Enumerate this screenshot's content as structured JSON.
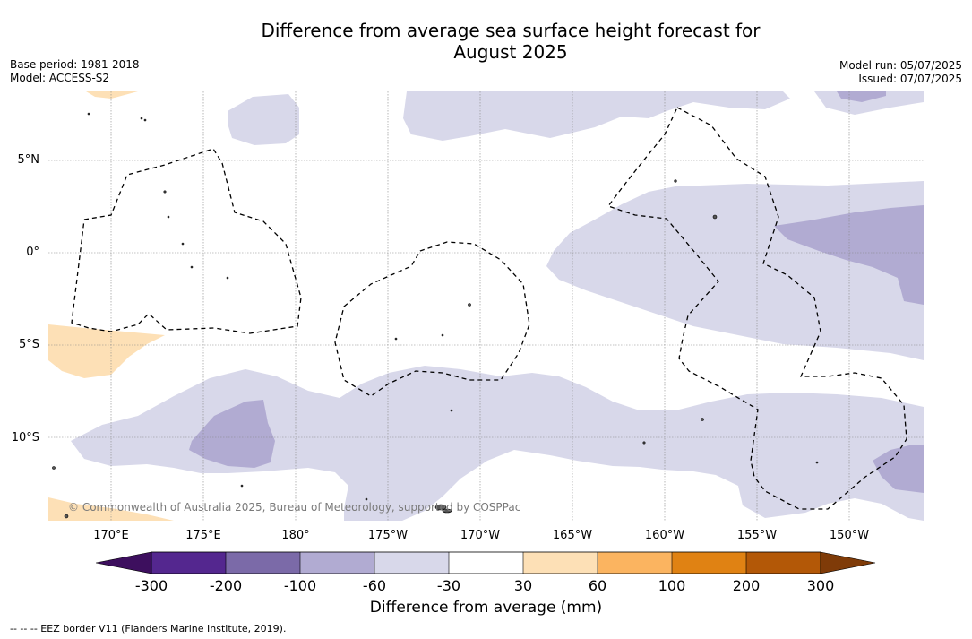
{
  "header": {
    "title_line1": "Difference from average sea surface height forecast for",
    "title_line2": "August 2025",
    "base_period": "Base period: 1981-2018",
    "model": "Model: ACCESS-S2",
    "model_run": "Model run: 05/07/2025",
    "issued": "Issued: 07/07/2025"
  },
  "map": {
    "lat_labels": [
      "5°N",
      "0°",
      "5°S",
      "10°S"
    ],
    "lon_labels": [
      "170°E",
      "175°E",
      "180°",
      "175°W",
      "170°W",
      "165°W",
      "160°W",
      "155°W",
      "150°W"
    ],
    "copyright": "© Commonwealth of Australia 2025, Bureau of Meteorology, supported by COSPPac",
    "colors": {
      "light_purple": "#d8d8ea",
      "mid_purple": "#b1abd2",
      "light_orange": "#fde0b6",
      "land": "#555555",
      "grid": "#888888"
    }
  },
  "colorbar": {
    "labels": [
      "-300",
      "-200",
      "-100",
      "-60",
      "-30",
      "30",
      "60",
      "100",
      "200",
      "300"
    ],
    "colors": [
      "#3d0f5e",
      "#54278f",
      "#7b6aa8",
      "#b1abd2",
      "#d8d8ea",
      "#ffffff",
      "#fde0b6",
      "#fbb460",
      "#e08213",
      "#b35807",
      "#7f3b08"
    ],
    "title": "Difference from average (mm)"
  },
  "legend": {
    "eez_note": "--  --  -- EEZ border V11 (Flanders Marine Institute, 2019)."
  }
}
